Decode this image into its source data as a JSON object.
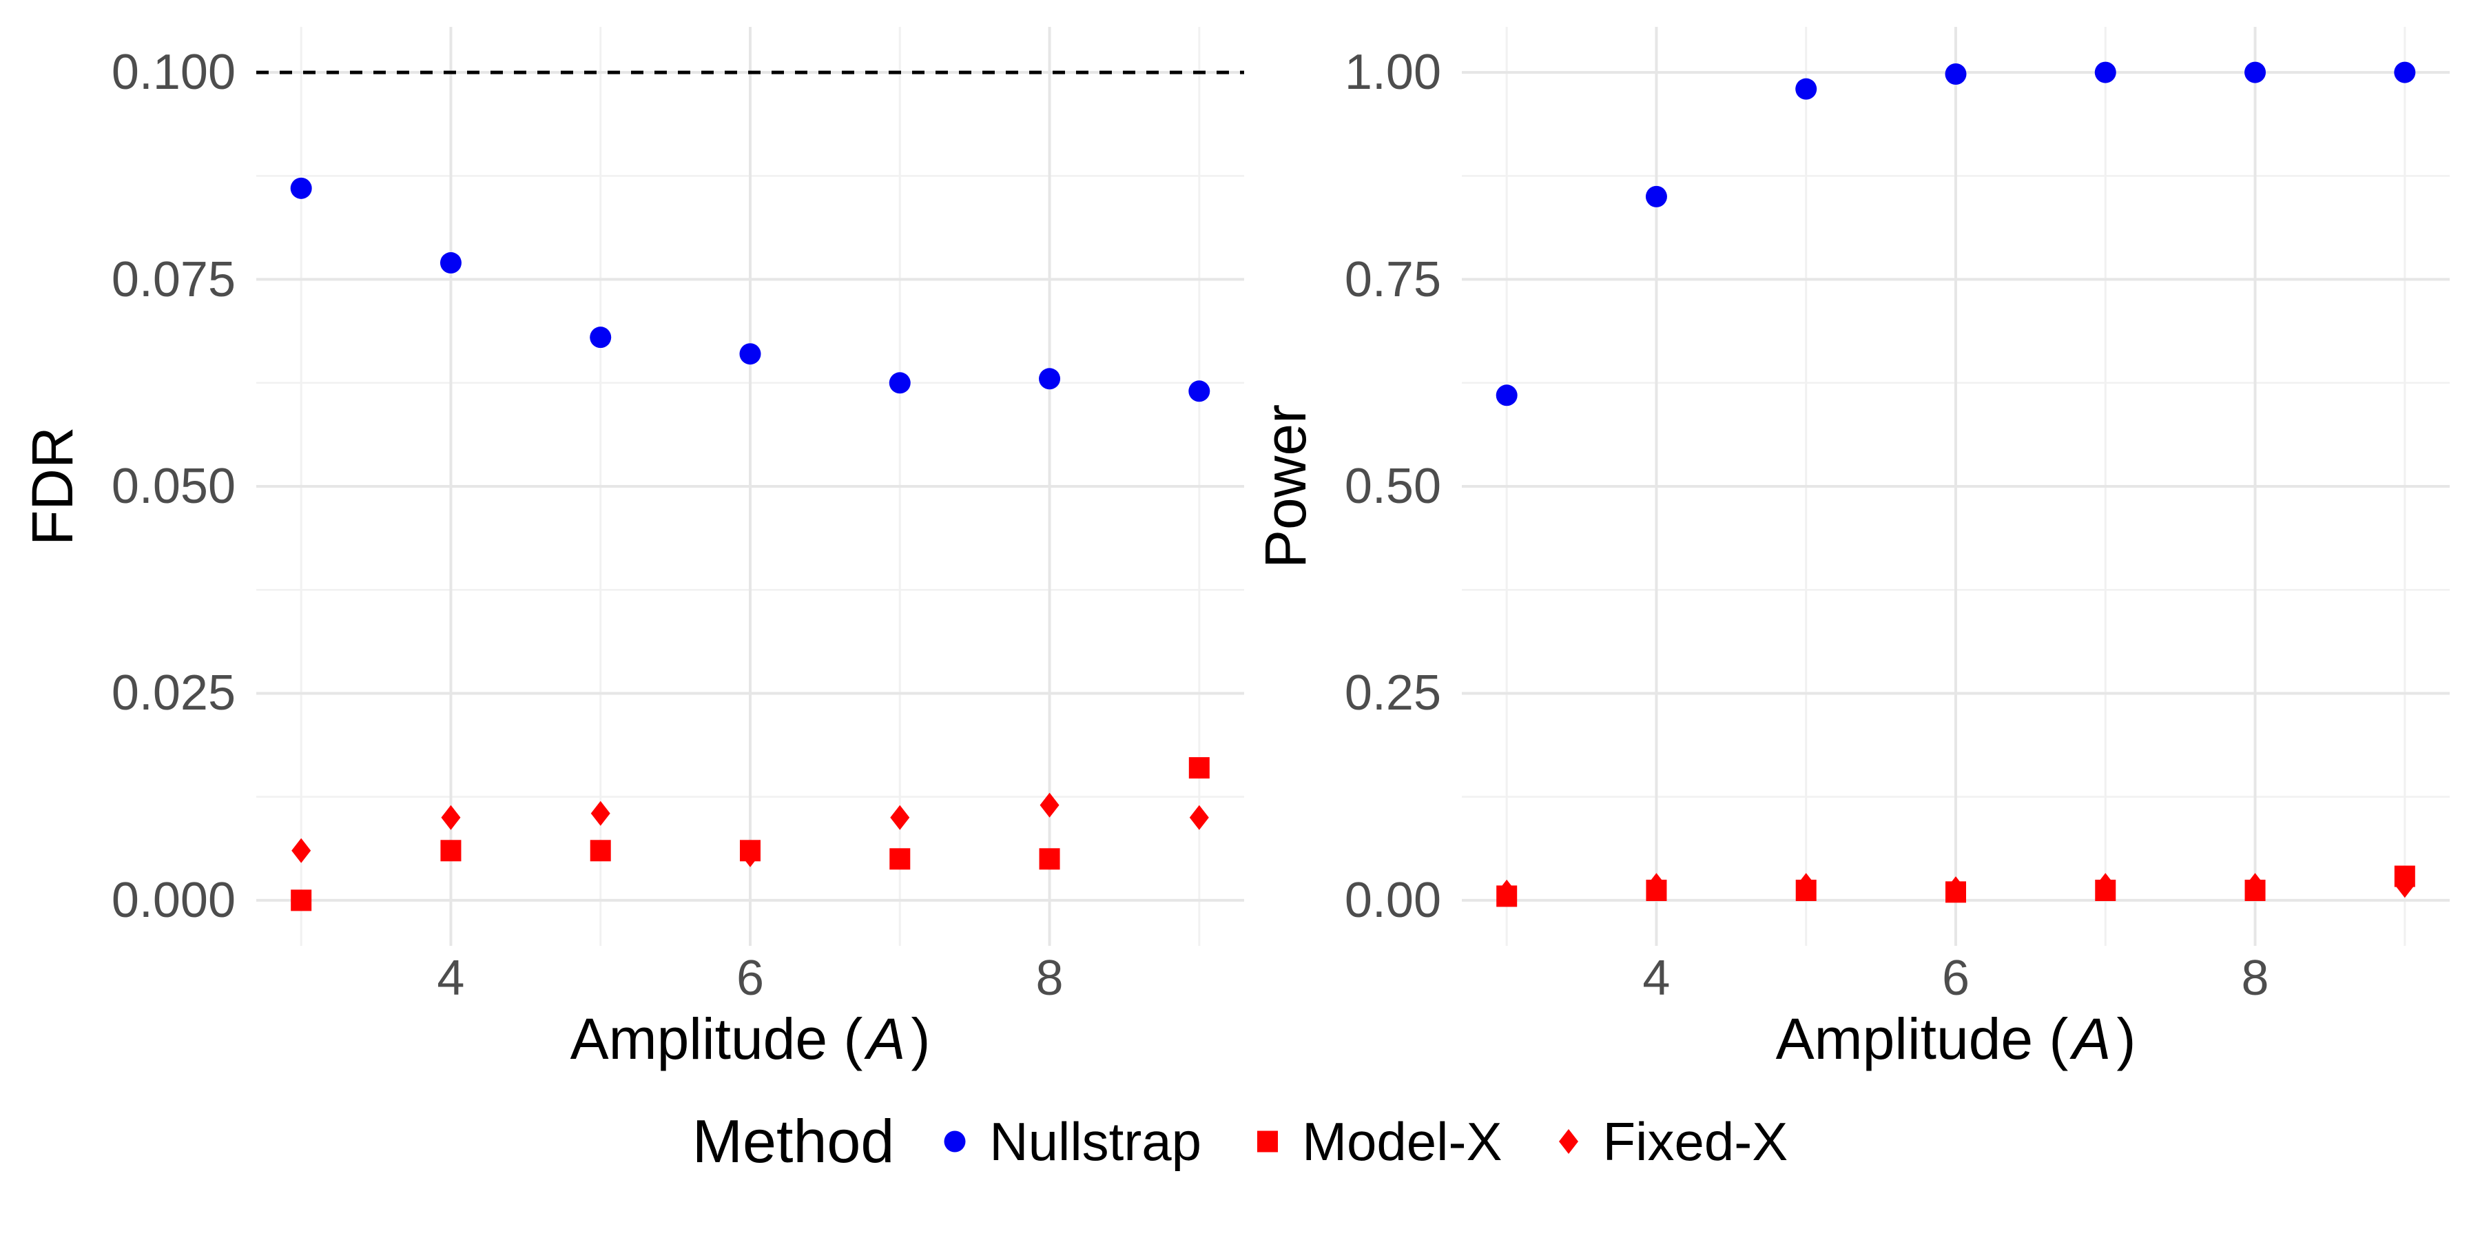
{
  "figure": {
    "background": "#FFFFFF",
    "colors": {
      "nullstrap_blue": "#0000F5",
      "model_fixed_red": "#FF0000",
      "grid_major": "#E6E6E6",
      "grid_minor": "#F1F1F1",
      "tick_label": "#4D4D4D",
      "dashed_target_line": "#000000"
    }
  },
  "legend": {
    "title": "Method",
    "items": [
      {
        "label": "Nullstrap",
        "marker": "circle",
        "color": "#0000F5"
      },
      {
        "label": "Model-X",
        "marker": "square",
        "color": "#FF0000"
      },
      {
        "label": "Fixed-X",
        "marker": "diamond",
        "color": "#FF0000"
      }
    ]
  },
  "chart_data": [
    {
      "type": "scatter",
      "title": "",
      "ylabel": "FDR",
      "xlabel_prefix": "Amplitude (",
      "xlabel_var": "A",
      "xlabel_suffix": ")",
      "x": [
        3,
        4,
        5,
        6,
        7,
        8,
        9
      ],
      "xlim": [
        2.7,
        9.3
      ],
      "ylim": [
        -0.0055,
        0.1055
      ],
      "x_ticks_major": [
        4,
        6,
        8
      ],
      "x_tick_labels": [
        "4",
        "6",
        "8"
      ],
      "x_ticks_minor": [
        3,
        5,
        7,
        9
      ],
      "y_ticks_major": [
        0.0,
        0.025,
        0.05,
        0.075,
        0.1
      ],
      "y_tick_labels": [
        "0.000",
        "0.025",
        "0.050",
        "0.075",
        "0.100"
      ],
      "y_ticks_minor": [
        0.0125,
        0.0375,
        0.0625,
        0.0875
      ],
      "grid": true,
      "legend_position": "bottom",
      "hline": {
        "y": 0.1,
        "style": "dashed",
        "color": "#000000"
      },
      "series": [
        {
          "name": "Nullstrap",
          "marker": "circle",
          "color": "#0000F5",
          "values": [
            0.086,
            0.077,
            0.068,
            0.066,
            0.0625,
            0.063,
            0.0615
          ]
        },
        {
          "name": "Model-X",
          "marker": "square",
          "color": "#FF0000",
          "values": [
            0.0,
            0.006,
            0.006,
            0.006,
            0.005,
            0.005,
            0.016
          ]
        },
        {
          "name": "Fixed-X",
          "marker": "diamond",
          "color": "#FF0000",
          "values": [
            0.006,
            0.01,
            0.0105,
            0.0055,
            0.01,
            0.0115,
            0.01
          ]
        }
      ]
    },
    {
      "type": "scatter",
      "title": "",
      "ylabel": "Power",
      "xlabel_prefix": "Amplitude (",
      "xlabel_var": "A",
      "xlabel_suffix": ")",
      "x": [
        3,
        4,
        5,
        6,
        7,
        8,
        9
      ],
      "xlim": [
        2.7,
        9.3
      ],
      "ylim": [
        -0.055,
        1.055
      ],
      "x_ticks_major": [
        4,
        6,
        8
      ],
      "x_tick_labels": [
        "4",
        "6",
        "8"
      ],
      "x_ticks_minor": [
        3,
        5,
        7,
        9
      ],
      "y_ticks_major": [
        0.0,
        0.25,
        0.5,
        0.75,
        1.0
      ],
      "y_tick_labels": [
        "0.00",
        "0.25",
        "0.50",
        "0.75",
        "1.00"
      ],
      "y_ticks_minor": [
        0.125,
        0.375,
        0.625,
        0.875
      ],
      "grid": true,
      "legend_position": "bottom",
      "hline": null,
      "series": [
        {
          "name": "Nullstrap",
          "marker": "circle",
          "color": "#0000F5",
          "values": [
            0.61,
            0.85,
            0.98,
            0.998,
            1.0,
            1.0,
            1.0
          ]
        },
        {
          "name": "Model-X",
          "marker": "square",
          "color": "#FF0000",
          "values": [
            0.005,
            0.012,
            0.012,
            0.01,
            0.012,
            0.012,
            0.029
          ]
        },
        {
          "name": "Fixed-X",
          "marker": "diamond",
          "color": "#FF0000",
          "values": [
            0.01,
            0.018,
            0.018,
            0.014,
            0.018,
            0.018,
            0.018
          ]
        }
      ]
    }
  ]
}
